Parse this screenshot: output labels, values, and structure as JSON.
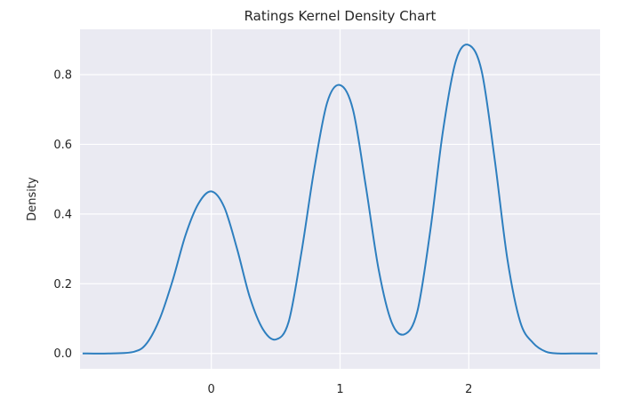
{
  "chart_data": {
    "type": "line",
    "title": "Ratings Kernel Density Chart",
    "xlabel": "",
    "ylabel": "Density",
    "xlim": [
      -1.02,
      3.02
    ],
    "ylim": [
      -0.044,
      0.93
    ],
    "x_ticks": [
      0,
      1,
      2
    ],
    "y_ticks": [
      0.0,
      0.2,
      0.4,
      0.6,
      0.8
    ],
    "y_tick_labels": [
      "0.0",
      "0.2",
      "0.4",
      "0.6",
      "0.8"
    ],
    "grid": true,
    "series": [
      {
        "color": "#2e7fbf",
        "x": [
          -1.0,
          -0.8,
          -0.6,
          -0.5,
          -0.4,
          -0.3,
          -0.2,
          -0.1,
          0.0,
          0.1,
          0.2,
          0.3,
          0.4,
          0.5,
          0.6,
          0.7,
          0.8,
          0.9,
          1.0,
          1.1,
          1.2,
          1.3,
          1.4,
          1.5,
          1.6,
          1.7,
          1.8,
          1.9,
          2.0,
          2.1,
          2.2,
          2.3,
          2.4,
          2.5,
          2.6,
          2.7,
          2.8,
          3.0
        ],
        "y": [
          0.0,
          0.0,
          0.005,
          0.03,
          0.1,
          0.21,
          0.34,
          0.43,
          0.465,
          0.42,
          0.3,
          0.16,
          0.07,
          0.04,
          0.09,
          0.29,
          0.53,
          0.72,
          0.77,
          0.7,
          0.48,
          0.24,
          0.09,
          0.055,
          0.12,
          0.35,
          0.64,
          0.84,
          0.885,
          0.81,
          0.56,
          0.27,
          0.09,
          0.03,
          0.005,
          0.0,
          0.0,
          0.0
        ]
      }
    ]
  }
}
